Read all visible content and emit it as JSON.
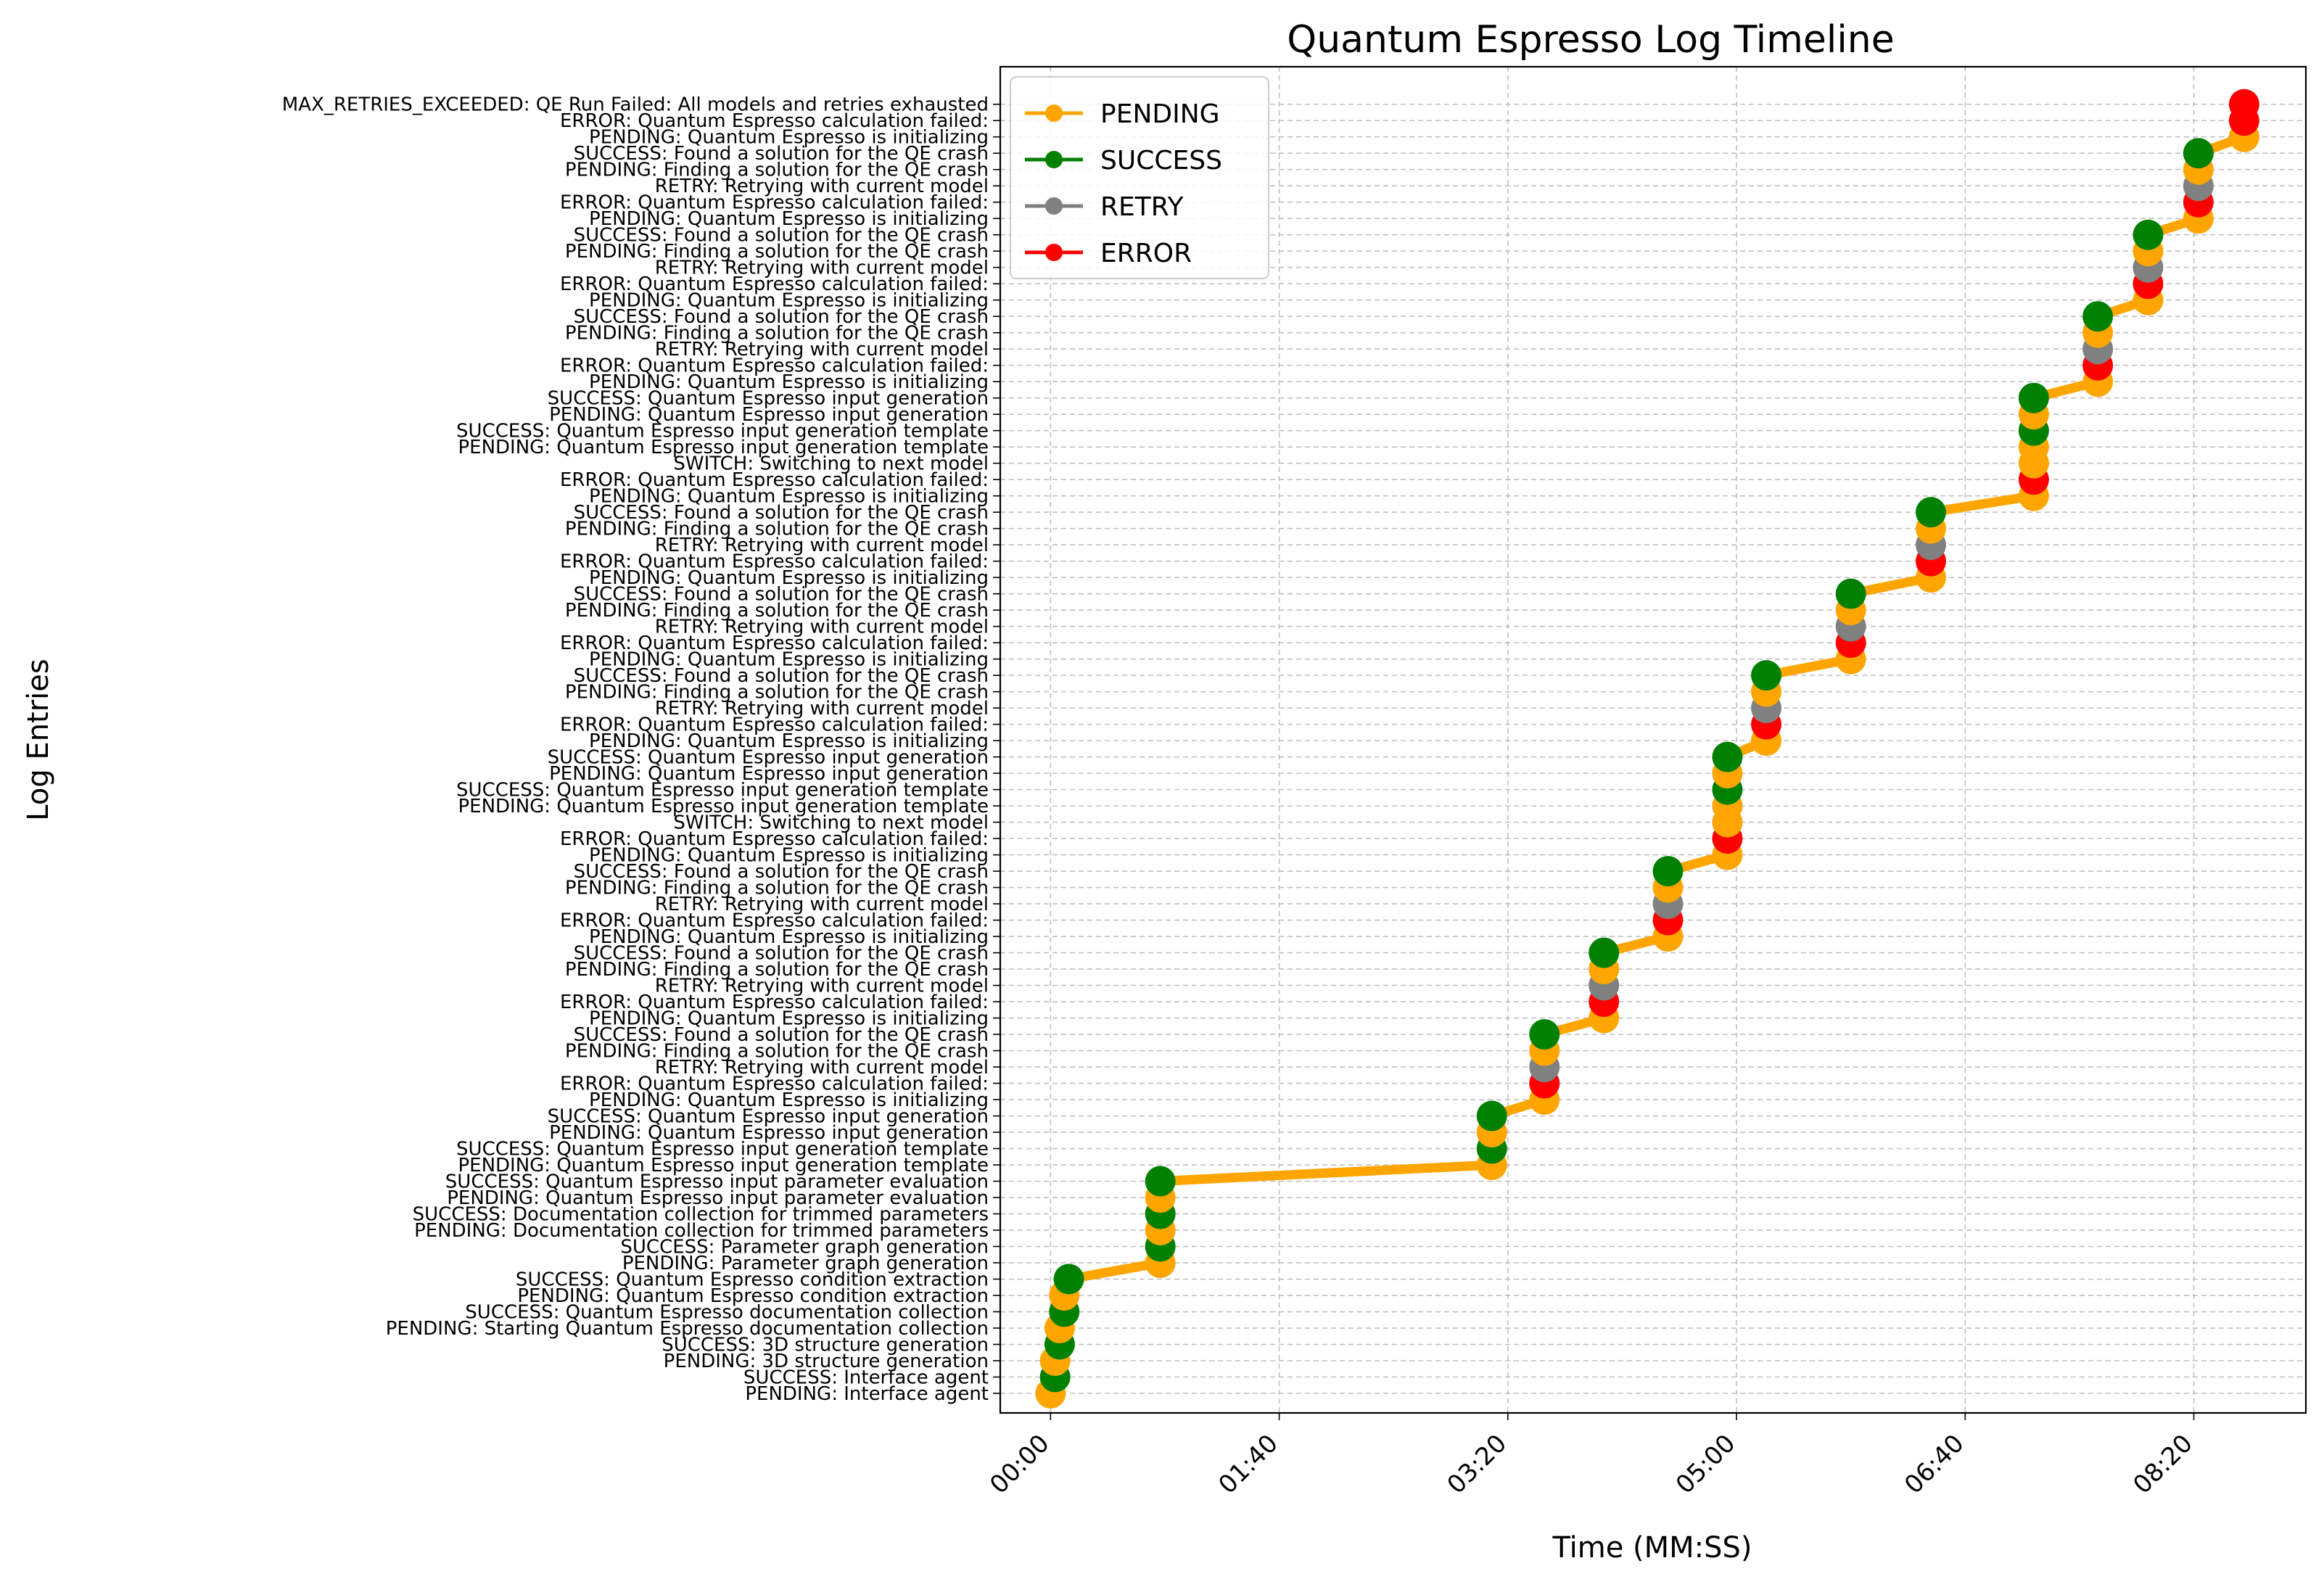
{
  "chart_data": {
    "type": "line",
    "title": "Quantum Espresso Log Timeline",
    "xlabel": "Time (MM:SS)",
    "ylabel": "Log Entries",
    "xlim": [
      -22,
      549
    ],
    "ylim": [
      -1.2,
      81.3
    ],
    "x_unit": "seconds",
    "x_ticks": [
      {
        "value": 0,
        "label": "00:00"
      },
      {
        "value": 100,
        "label": "01:40"
      },
      {
        "value": 200,
        "label": "03:20"
      },
      {
        "value": 300,
        "label": "05:00"
      },
      {
        "value": 400,
        "label": "06:40"
      },
      {
        "value": 500,
        "label": "08:20"
      }
    ],
    "grid": true,
    "legend_position": "upper-left",
    "legend": [
      {
        "name": "PENDING",
        "color": "#ffa500"
      },
      {
        "name": "SUCCESS",
        "color": "#008000"
      },
      {
        "name": "RETRY",
        "color": "#808080"
      },
      {
        "name": "ERROR",
        "color": "#ff0000"
      }
    ],
    "colors": {
      "PENDING": "#ffa500",
      "SUCCESS": "#008000",
      "RETRY": "#808080",
      "ERROR": "#ff0000",
      "SWITCH": "#ffa500",
      "MAX_RETRIES_EXCEEDED": "#ff0000"
    },
    "entries": [
      {
        "label": "PENDING: Interface agent",
        "status": "PENDING",
        "t": 0
      },
      {
        "label": "SUCCESS: Interface agent",
        "status": "SUCCESS",
        "t": 2
      },
      {
        "label": "PENDING: 3D structure generation",
        "status": "PENDING",
        "t": 2
      },
      {
        "label": "SUCCESS: 3D structure generation",
        "status": "SUCCESS",
        "t": 4
      },
      {
        "label": "PENDING: Starting Quantum Espresso documentation collection",
        "status": "PENDING",
        "t": 4
      },
      {
        "label": "SUCCESS: Quantum Espresso documentation collection",
        "status": "SUCCESS",
        "t": 6
      },
      {
        "label": "PENDING: Quantum Espresso condition extraction",
        "status": "PENDING",
        "t": 6
      },
      {
        "label": "SUCCESS: Quantum Espresso condition extraction",
        "status": "SUCCESS",
        "t": 8
      },
      {
        "label": "PENDING: Parameter graph generation",
        "status": "PENDING",
        "t": 48
      },
      {
        "label": "SUCCESS: Parameter graph generation",
        "status": "SUCCESS",
        "t": 48
      },
      {
        "label": "PENDING: Documentation collection for trimmed parameters",
        "status": "PENDING",
        "t": 48
      },
      {
        "label": "SUCCESS: Documentation collection for trimmed parameters",
        "status": "SUCCESS",
        "t": 48
      },
      {
        "label": "PENDING: Quantum Espresso input parameter evaluation",
        "status": "PENDING",
        "t": 48
      },
      {
        "label": "SUCCESS: Quantum Espresso input parameter evaluation",
        "status": "SUCCESS",
        "t": 48
      },
      {
        "label": "PENDING: Quantum Espresso input generation template",
        "status": "PENDING",
        "t": 193
      },
      {
        "label": "SUCCESS: Quantum Espresso input generation template",
        "status": "SUCCESS",
        "t": 193
      },
      {
        "label": "PENDING: Quantum Espresso input generation",
        "status": "PENDING",
        "t": 193
      },
      {
        "label": "SUCCESS: Quantum Espresso input generation",
        "status": "SUCCESS",
        "t": 193
      },
      {
        "label": "PENDING: Quantum Espresso is initializing",
        "status": "PENDING",
        "t": 216
      },
      {
        "label": "ERROR: Quantum Espresso calculation failed:",
        "status": "ERROR",
        "t": 216
      },
      {
        "label": "RETRY: Retrying with current model",
        "status": "RETRY",
        "t": 216
      },
      {
        "label": "PENDING: Finding a solution for the QE crash",
        "status": "PENDING",
        "t": 216
      },
      {
        "label": "SUCCESS: Found a solution for the QE crash",
        "status": "SUCCESS",
        "t": 216
      },
      {
        "label": "PENDING: Quantum Espresso is initializing",
        "status": "PENDING",
        "t": 242
      },
      {
        "label": "ERROR: Quantum Espresso calculation failed:",
        "status": "ERROR",
        "t": 242
      },
      {
        "label": "RETRY: Retrying with current model",
        "status": "RETRY",
        "t": 242
      },
      {
        "label": "PENDING: Finding a solution for the QE crash",
        "status": "PENDING",
        "t": 242
      },
      {
        "label": "SUCCESS: Found a solution for the QE crash",
        "status": "SUCCESS",
        "t": 242
      },
      {
        "label": "PENDING: Quantum Espresso is initializing",
        "status": "PENDING",
        "t": 270
      },
      {
        "label": "ERROR: Quantum Espresso calculation failed:",
        "status": "ERROR",
        "t": 270
      },
      {
        "label": "RETRY: Retrying with current model",
        "status": "RETRY",
        "t": 270
      },
      {
        "label": "PENDING: Finding a solution for the QE crash",
        "status": "PENDING",
        "t": 270
      },
      {
        "label": "SUCCESS: Found a solution for the QE crash",
        "status": "SUCCESS",
        "t": 270
      },
      {
        "label": "PENDING: Quantum Espresso is initializing",
        "status": "PENDING",
        "t": 296
      },
      {
        "label": "ERROR: Quantum Espresso calculation failed:",
        "status": "ERROR",
        "t": 296
      },
      {
        "label": "SWITCH: Switching to next model",
        "status": "SWITCH",
        "t": 296
      },
      {
        "label": "PENDING: Quantum Espresso input generation template",
        "status": "PENDING",
        "t": 296
      },
      {
        "label": "SUCCESS: Quantum Espresso input generation template",
        "status": "SUCCESS",
        "t": 296
      },
      {
        "label": "PENDING: Quantum Espresso input generation",
        "status": "PENDING",
        "t": 296
      },
      {
        "label": "SUCCESS: Quantum Espresso input generation",
        "status": "SUCCESS",
        "t": 296
      },
      {
        "label": "PENDING: Quantum Espresso is initializing",
        "status": "PENDING",
        "t": 313
      },
      {
        "label": "ERROR: Quantum Espresso calculation failed:",
        "status": "ERROR",
        "t": 313
      },
      {
        "label": "RETRY: Retrying with current model",
        "status": "RETRY",
        "t": 313
      },
      {
        "label": "PENDING: Finding a solution for the QE crash",
        "status": "PENDING",
        "t": 313
      },
      {
        "label": "SUCCESS: Found a solution for the QE crash",
        "status": "SUCCESS",
        "t": 313
      },
      {
        "label": "PENDING: Quantum Espresso is initializing",
        "status": "PENDING",
        "t": 350
      },
      {
        "label": "ERROR: Quantum Espresso calculation failed:",
        "status": "ERROR",
        "t": 350
      },
      {
        "label": "RETRY: Retrying with current model",
        "status": "RETRY",
        "t": 350
      },
      {
        "label": "PENDING: Finding a solution for the QE crash",
        "status": "PENDING",
        "t": 350
      },
      {
        "label": "SUCCESS: Found a solution for the QE crash",
        "status": "SUCCESS",
        "t": 350
      },
      {
        "label": "PENDING: Quantum Espresso is initializing",
        "status": "PENDING",
        "t": 385
      },
      {
        "label": "ERROR: Quantum Espresso calculation failed:",
        "status": "ERROR",
        "t": 385
      },
      {
        "label": "RETRY: Retrying with current model",
        "status": "RETRY",
        "t": 385
      },
      {
        "label": "PENDING: Finding a solution for the QE crash",
        "status": "PENDING",
        "t": 385
      },
      {
        "label": "SUCCESS: Found a solution for the QE crash",
        "status": "SUCCESS",
        "t": 385
      },
      {
        "label": "PENDING: Quantum Espresso is initializing",
        "status": "PENDING",
        "t": 430
      },
      {
        "label": "ERROR: Quantum Espresso calculation failed:",
        "status": "ERROR",
        "t": 430
      },
      {
        "label": "SWITCH: Switching to next model",
        "status": "SWITCH",
        "t": 430
      },
      {
        "label": "PENDING: Quantum Espresso input generation template",
        "status": "PENDING",
        "t": 430
      },
      {
        "label": "SUCCESS: Quantum Espresso input generation template",
        "status": "SUCCESS",
        "t": 430
      },
      {
        "label": "PENDING: Quantum Espresso input generation",
        "status": "PENDING",
        "t": 430
      },
      {
        "label": "SUCCESS: Quantum Espresso input generation",
        "status": "SUCCESS",
        "t": 430
      },
      {
        "label": "PENDING: Quantum Espresso is initializing",
        "status": "PENDING",
        "t": 458
      },
      {
        "label": "ERROR: Quantum Espresso calculation failed:",
        "status": "ERROR",
        "t": 458
      },
      {
        "label": "RETRY: Retrying with current model",
        "status": "RETRY",
        "t": 458
      },
      {
        "label": "PENDING: Finding a solution for the QE crash",
        "status": "PENDING",
        "t": 458
      },
      {
        "label": "SUCCESS: Found a solution for the QE crash",
        "status": "SUCCESS",
        "t": 458
      },
      {
        "label": "PENDING: Quantum Espresso is initializing",
        "status": "PENDING",
        "t": 480
      },
      {
        "label": "ERROR: Quantum Espresso calculation failed:",
        "status": "ERROR",
        "t": 480
      },
      {
        "label": "RETRY: Retrying with current model",
        "status": "RETRY",
        "t": 480
      },
      {
        "label": "PENDING: Finding a solution for the QE crash",
        "status": "PENDING",
        "t": 480
      },
      {
        "label": "SUCCESS: Found a solution for the QE crash",
        "status": "SUCCESS",
        "t": 480
      },
      {
        "label": "PENDING: Quantum Espresso is initializing",
        "status": "PENDING",
        "t": 502
      },
      {
        "label": "ERROR: Quantum Espresso calculation failed:",
        "status": "ERROR",
        "t": 502
      },
      {
        "label": "RETRY: Retrying with current model",
        "status": "RETRY",
        "t": 502
      },
      {
        "label": "PENDING: Finding a solution for the QE crash",
        "status": "PENDING",
        "t": 502
      },
      {
        "label": "SUCCESS: Found a solution for the QE crash",
        "status": "SUCCESS",
        "t": 502
      },
      {
        "label": "PENDING: Quantum Espresso is initializing",
        "status": "PENDING",
        "t": 522
      },
      {
        "label": "ERROR: Quantum Espresso calculation failed:",
        "status": "ERROR",
        "t": 522
      },
      {
        "label": "MAX_RETRIES_EXCEEDED: QE Run Failed: All models and retries exhausted",
        "status": "MAX_RETRIES_EXCEEDED",
        "t": 522
      }
    ]
  }
}
